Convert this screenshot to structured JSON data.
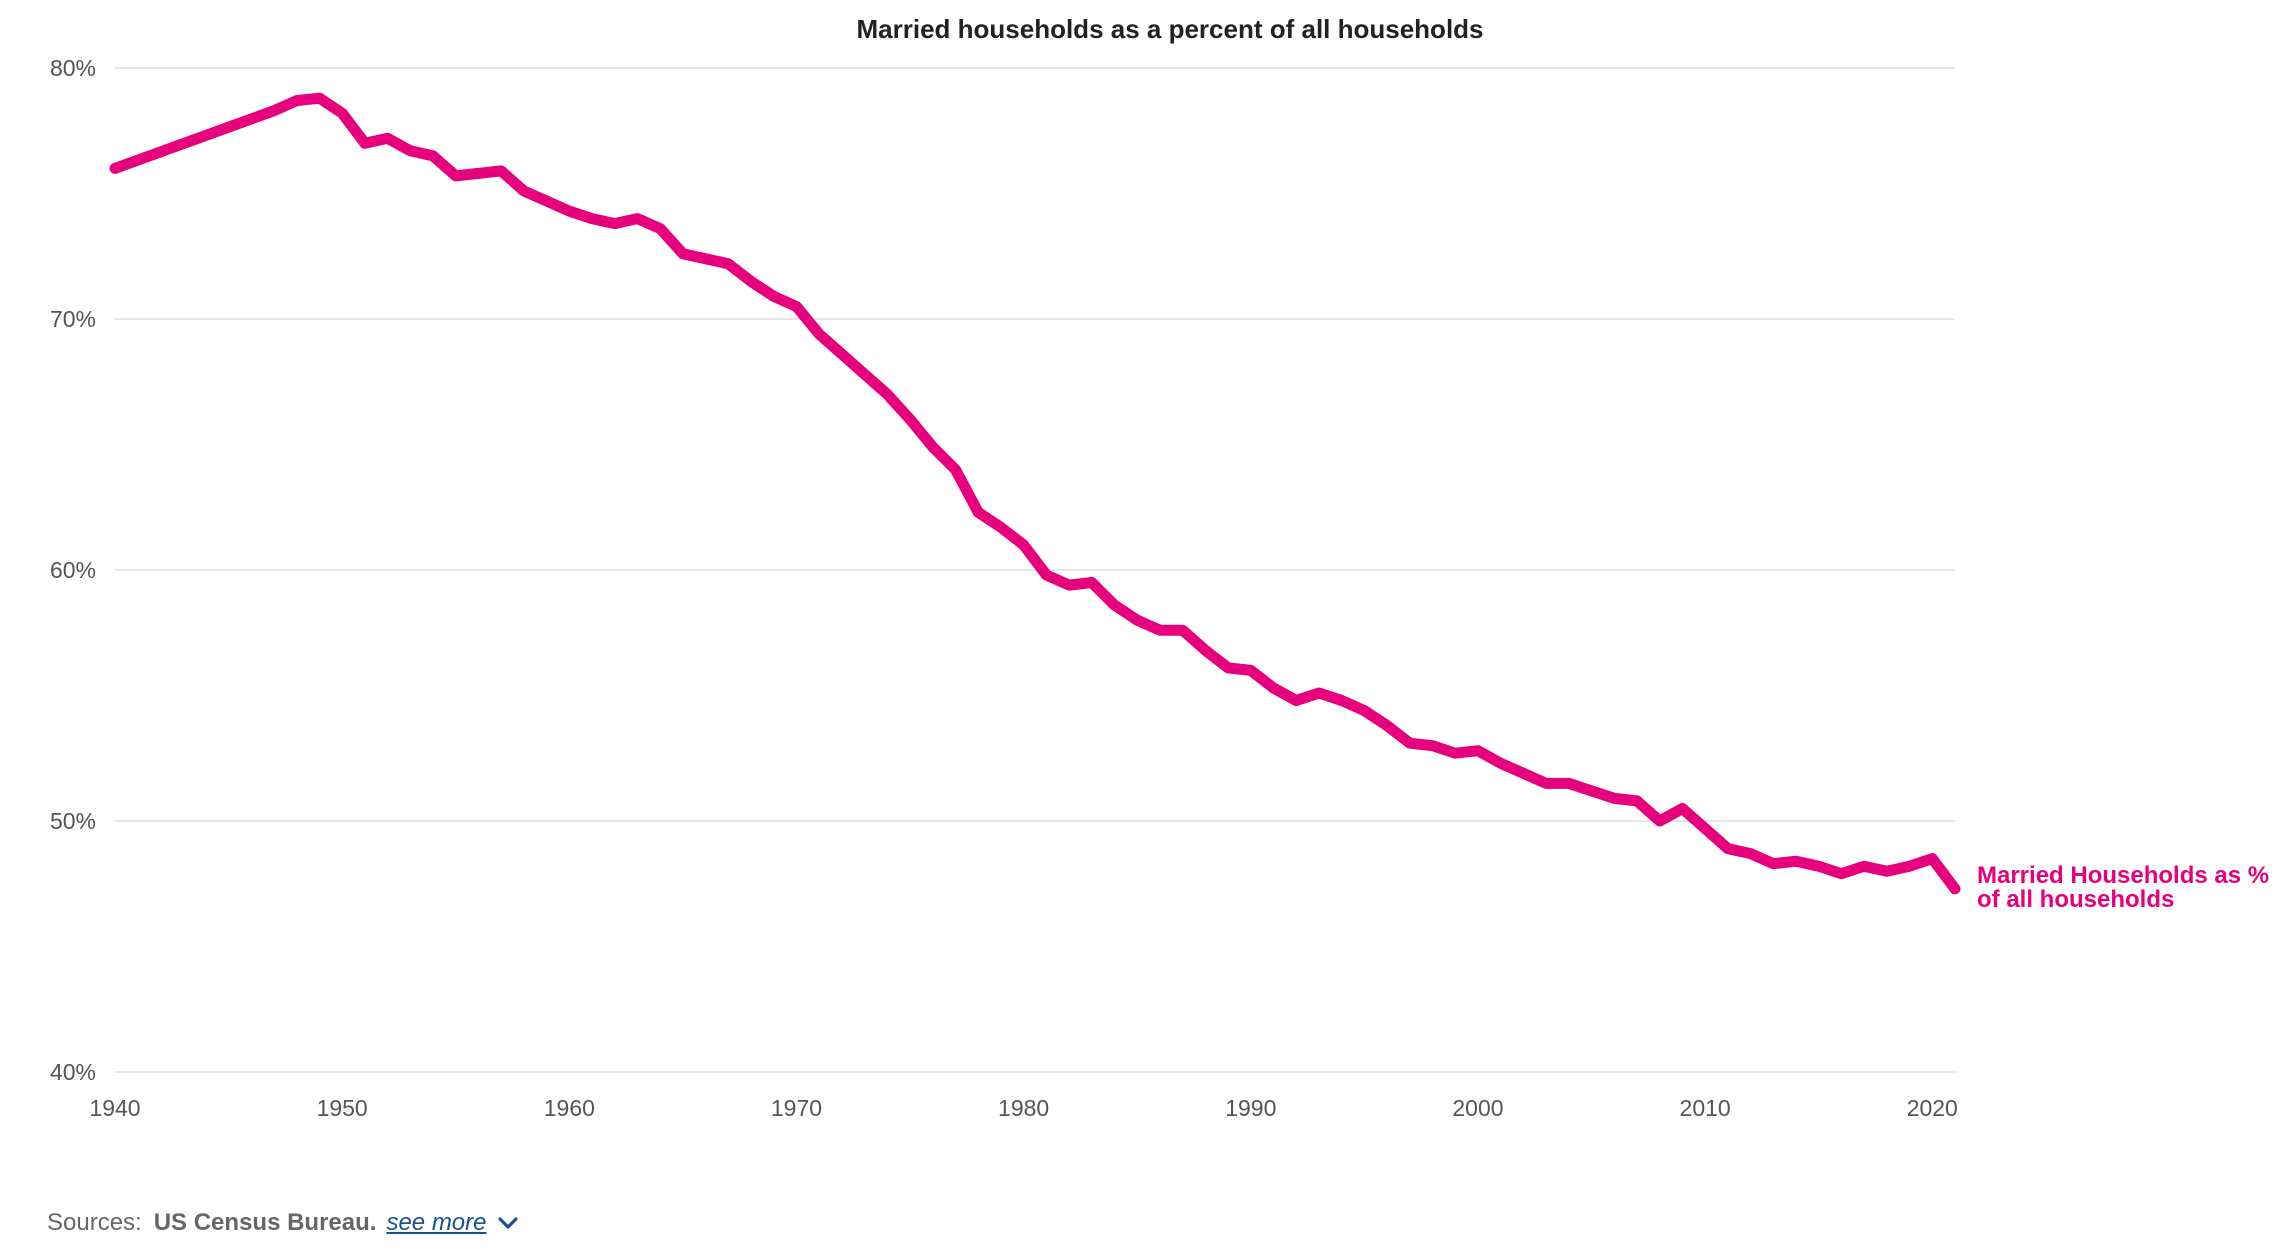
{
  "chart_data": {
    "type": "line",
    "title": "Married households as a percent of all households",
    "xlabel": "",
    "ylabel": "",
    "xlim": [
      1940,
      2021
    ],
    "ylim": [
      40,
      80
    ],
    "grid": true,
    "x_ticks": [
      "1940",
      "1950",
      "1960",
      "1970",
      "1980",
      "1990",
      "2000",
      "2010",
      "2020"
    ],
    "y_ticks": [
      "40%",
      "50%",
      "60%",
      "70%",
      "80%"
    ],
    "series": [
      {
        "name": "Married Households as % of all households",
        "label_lines": [
          "Married Households as %",
          "of all households"
        ],
        "color": "#e6007e",
        "x": [
          1940,
          1947,
          1948,
          1949,
          1950,
          1951,
          1952,
          1953,
          1954,
          1955,
          1956,
          1957,
          1958,
          1959,
          1960,
          1961,
          1962,
          1963,
          1964,
          1965,
          1966,
          1967,
          1968,
          1969,
          1970,
          1971,
          1972,
          1973,
          1974,
          1975,
          1976,
          1977,
          1978,
          1979,
          1980,
          1981,
          1982,
          1983,
          1984,
          1985,
          1986,
          1987,
          1988,
          1989,
          1990,
          1991,
          1992,
          1993,
          1994,
          1995,
          1996,
          1997,
          1998,
          1999,
          2000,
          2001,
          2002,
          2003,
          2004,
          2005,
          2006,
          2007,
          2008,
          2009,
          2010,
          2011,
          2012,
          2013,
          2014,
          2015,
          2016,
          2017,
          2018,
          2019,
          2020,
          2021
        ],
        "values": [
          76.0,
          78.3,
          78.7,
          78.8,
          78.2,
          77.0,
          77.2,
          76.7,
          76.5,
          75.7,
          75.8,
          75.9,
          75.1,
          74.7,
          74.3,
          74.0,
          73.8,
          74.0,
          73.6,
          72.6,
          72.4,
          72.2,
          71.5,
          70.9,
          70.5,
          69.4,
          68.6,
          67.8,
          67.0,
          66.0,
          64.9,
          64.0,
          62.3,
          61.7,
          61.0,
          59.8,
          59.4,
          59.5,
          58.6,
          58.0,
          57.6,
          57.6,
          56.8,
          56.1,
          56.0,
          55.3,
          54.8,
          55.1,
          54.8,
          54.4,
          53.8,
          53.1,
          53.0,
          52.7,
          52.8,
          52.3,
          51.9,
          51.5,
          51.5,
          51.2,
          50.9,
          50.8,
          50.0,
          50.5,
          49.7,
          48.9,
          48.7,
          48.3,
          48.4,
          48.2,
          47.9,
          48.2,
          48.0,
          48.2,
          48.5,
          47.3
        ]
      }
    ]
  },
  "footer": {
    "sources_label": "Sources:",
    "sources_name": "US Census Bureau.",
    "see_more_label": "see more"
  },
  "colors": {
    "series": "#e6007e",
    "link": "#1a4f91"
  }
}
